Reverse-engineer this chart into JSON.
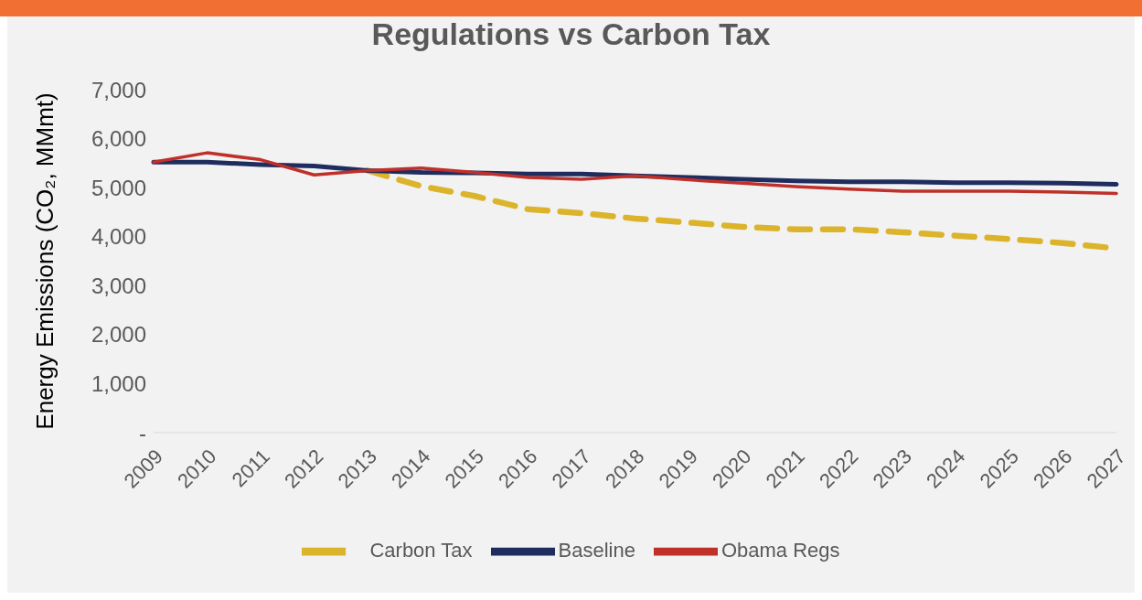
{
  "chart_data": {
    "type": "line",
    "title": "Regulations vs Carbon Tax",
    "ylabel": "Energy Emissions (CO₂, MMmt)",
    "categories": [
      "2009",
      "2010",
      "2011",
      "2012",
      "2013",
      "2014",
      "2015",
      "2016",
      "2017",
      "2018",
      "2019",
      "2020",
      "2021",
      "2022",
      "2023",
      "2024",
      "2025",
      "2026",
      "2027"
    ],
    "series": [
      {
        "name": "Carbon Tax",
        "color": "#dbb42c",
        "line_style": "dashed",
        "values": [
          null,
          null,
          null,
          null,
          5350,
          5030,
          4830,
          4560,
          4480,
          4370,
          4290,
          4200,
          4150,
          4150,
          4090,
          4020,
          3950,
          3870,
          3760
        ]
      },
      {
        "name": "Baseline",
        "color": "#1f2d5e",
        "values": [
          5520,
          5520,
          5470,
          5440,
          5350,
          5310,
          5300,
          5280,
          5280,
          5240,
          5210,
          5170,
          5140,
          5120,
          5120,
          5100,
          5100,
          5090,
          5070
        ]
      },
      {
        "name": "Obama Regs",
        "color": "#c0302a",
        "values": [
          5520,
          5710,
          5570,
          5260,
          5350,
          5400,
          5310,
          5210,
          5170,
          5240,
          5160,
          5090,
          5020,
          4970,
          4930,
          4930,
          4930,
          4910,
          4880
        ]
      }
    ],
    "ylim": [
      0,
      7000
    ],
    "yticks": [
      {
        "value": 0,
        "label": "-"
      },
      {
        "value": 1000,
        "label": "1,000"
      },
      {
        "value": 2000,
        "label": "2,000"
      },
      {
        "value": 3000,
        "label": "3,000"
      },
      {
        "value": 4000,
        "label": "4,000"
      },
      {
        "value": 5000,
        "label": "5,000"
      },
      {
        "value": 6000,
        "label": "6,000"
      },
      {
        "value": 7000,
        "label": "7,000"
      }
    ],
    "grid": false,
    "legend": "bottom",
    "marker": "none",
    "line_style": "solid"
  }
}
